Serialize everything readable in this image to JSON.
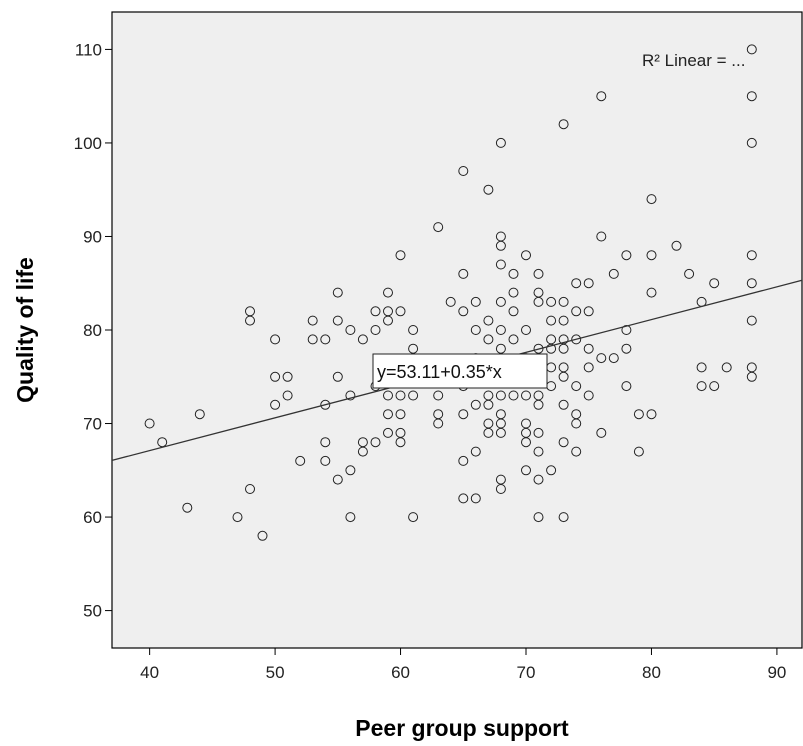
{
  "chart_data": {
    "type": "scatter",
    "xlabel": "Peer group support",
    "ylabel": "Quality of life",
    "xlim": [
      37,
      92
    ],
    "ylim": [
      46,
      114
    ],
    "x_ticks": [
      "40",
      "50",
      "60",
      "70",
      "80",
      "90"
    ],
    "y_ticks": [
      "50",
      "60",
      "70",
      "80",
      "90",
      "100",
      "110"
    ],
    "fit_line": {
      "intercept": 53.11,
      "slope": 0.35
    },
    "equation_label": "y=53.11+0.35*x",
    "r2_label": "R² Linear = ...",
    "plot_background": "#efefef",
    "points": [
      [
        40,
        70
      ],
      [
        41,
        68
      ],
      [
        43,
        61
      ],
      [
        44,
        71
      ],
      [
        47,
        60
      ],
      [
        48,
        82
      ],
      [
        48,
        81
      ],
      [
        48,
        63
      ],
      [
        49,
        58
      ],
      [
        50,
        79
      ],
      [
        50,
        75
      ],
      [
        50,
        72
      ],
      [
        51,
        75
      ],
      [
        51,
        73
      ],
      [
        52,
        66
      ],
      [
        53,
        81
      ],
      [
        53,
        79
      ],
      [
        54,
        79
      ],
      [
        54,
        72
      ],
      [
        54,
        68
      ],
      [
        54,
        66
      ],
      [
        55,
        84
      ],
      [
        55,
        81
      ],
      [
        55,
        75
      ],
      [
        55,
        64
      ],
      [
        56,
        80
      ],
      [
        56,
        73
      ],
      [
        56,
        65
      ],
      [
        56,
        60
      ],
      [
        57,
        79
      ],
      [
        57,
        68
      ],
      [
        57,
        67
      ],
      [
        58,
        82
      ],
      [
        58,
        80
      ],
      [
        58,
        74
      ],
      [
        58,
        68
      ],
      [
        59,
        84
      ],
      [
        59,
        82
      ],
      [
        59,
        81
      ],
      [
        59,
        73
      ],
      [
        59,
        71
      ],
      [
        59,
        69
      ],
      [
        60,
        88
      ],
      [
        60,
        82
      ],
      [
        60,
        75
      ],
      [
        60,
        73
      ],
      [
        60,
        71
      ],
      [
        60,
        69
      ],
      [
        60,
        68
      ],
      [
        61,
        80
      ],
      [
        61,
        78
      ],
      [
        61,
        76
      ],
      [
        61,
        73
      ],
      [
        61,
        60
      ],
      [
        62,
        75
      ],
      [
        63,
        91
      ],
      [
        63,
        73
      ],
      [
        63,
        71
      ],
      [
        63,
        70
      ],
      [
        64,
        83
      ],
      [
        65,
        97
      ],
      [
        65,
        86
      ],
      [
        65,
        82
      ],
      [
        65,
        74
      ],
      [
        65,
        71
      ],
      [
        65,
        66
      ],
      [
        65,
        62
      ],
      [
        66,
        83
      ],
      [
        66,
        80
      ],
      [
        66,
        77
      ],
      [
        66,
        72
      ],
      [
        66,
        67
      ],
      [
        66,
        62
      ],
      [
        67,
        95
      ],
      [
        67,
        81
      ],
      [
        67,
        79
      ],
      [
        67,
        73
      ],
      [
        67,
        72
      ],
      [
        67,
        70
      ],
      [
        67,
        69
      ],
      [
        68,
        100
      ],
      [
        68,
        90
      ],
      [
        68,
        89
      ],
      [
        68,
        87
      ],
      [
        68,
        83
      ],
      [
        68,
        80
      ],
      [
        68,
        78
      ],
      [
        68,
        76
      ],
      [
        68,
        73
      ],
      [
        68,
        71
      ],
      [
        68,
        70
      ],
      [
        68,
        69
      ],
      [
        68,
        64
      ],
      [
        68,
        63
      ],
      [
        69,
        86
      ],
      [
        69,
        84
      ],
      [
        69,
        82
      ],
      [
        69,
        79
      ],
      [
        69,
        73
      ],
      [
        70,
        88
      ],
      [
        70,
        80
      ],
      [
        70,
        77
      ],
      [
        70,
        73
      ],
      [
        70,
        70
      ],
      [
        70,
        69
      ],
      [
        70,
        68
      ],
      [
        70,
        65
      ],
      [
        71,
        86
      ],
      [
        71,
        84
      ],
      [
        71,
        83
      ],
      [
        71,
        78
      ],
      [
        71,
        77
      ],
      [
        71,
        75
      ],
      [
        71,
        73
      ],
      [
        71,
        72
      ],
      [
        71,
        69
      ],
      [
        71,
        67
      ],
      [
        71,
        64
      ],
      [
        71,
        60
      ],
      [
        72,
        83
      ],
      [
        72,
        81
      ],
      [
        72,
        79
      ],
      [
        72,
        78
      ],
      [
        72,
        76
      ],
      [
        72,
        74
      ],
      [
        72,
        65
      ],
      [
        73,
        102
      ],
      [
        73,
        83
      ],
      [
        73,
        81
      ],
      [
        73,
        79
      ],
      [
        73,
        78
      ],
      [
        73,
        76
      ],
      [
        73,
        75
      ],
      [
        73,
        72
      ],
      [
        73,
        68
      ],
      [
        73,
        60
      ],
      [
        74,
        85
      ],
      [
        74,
        82
      ],
      [
        74,
        79
      ],
      [
        74,
        74
      ],
      [
        74,
        71
      ],
      [
        74,
        70
      ],
      [
        74,
        67
      ],
      [
        75,
        85
      ],
      [
        75,
        82
      ],
      [
        75,
        78
      ],
      [
        75,
        76
      ],
      [
        75,
        73
      ],
      [
        76,
        105
      ],
      [
        76,
        90
      ],
      [
        76,
        77
      ],
      [
        76,
        69
      ],
      [
        77,
        86
      ],
      [
        77,
        77
      ],
      [
        78,
        88
      ],
      [
        78,
        80
      ],
      [
        78,
        78
      ],
      [
        78,
        74
      ],
      [
        79,
        71
      ],
      [
        79,
        67
      ],
      [
        80,
        94
      ],
      [
        80,
        88
      ],
      [
        80,
        84
      ],
      [
        80,
        71
      ],
      [
        82,
        89
      ],
      [
        83,
        86
      ],
      [
        84,
        83
      ],
      [
        84,
        76
      ],
      [
        84,
        74
      ],
      [
        85,
        85
      ],
      [
        85,
        74
      ],
      [
        86,
        76
      ],
      [
        88,
        110
      ],
      [
        88,
        105
      ],
      [
        88,
        100
      ],
      [
        88,
        88
      ],
      [
        88,
        85
      ],
      [
        88,
        81
      ],
      [
        88,
        76
      ],
      [
        88,
        75
      ]
    ]
  }
}
